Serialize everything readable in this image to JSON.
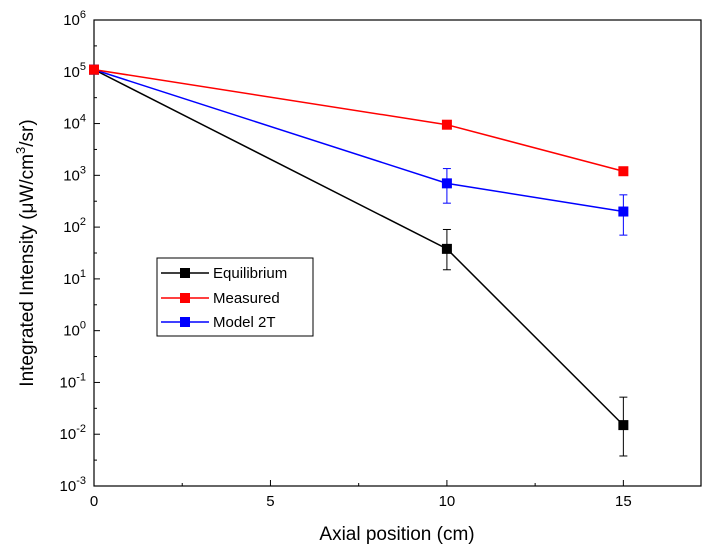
{
  "chart_data": {
    "type": "line",
    "xlabel": "Axial position (cm)",
    "ylabel_parts": [
      "Integrated Intensity (μW/cm",
      "3",
      "/sr)"
    ],
    "x_scale": "linear",
    "y_scale": "log",
    "xlim": [
      0,
      17.2
    ],
    "ylim": [
      0.001,
      1000000
    ],
    "x_ticks": [
      0,
      5,
      10,
      15
    ],
    "x_tick_labels": [
      "0",
      "5",
      "10",
      "15"
    ],
    "y_ticks": [
      0.001,
      0.01,
      0.1,
      1,
      10,
      100,
      1000,
      10000,
      100000,
      1000000
    ],
    "y_tick_labels": [
      {
        "base": "10",
        "exp": "-3"
      },
      {
        "base": "10",
        "exp": "-2"
      },
      {
        "base": "10",
        "exp": "-1"
      },
      {
        "base": "10",
        "exp": "0"
      },
      {
        "base": "10",
        "exp": "1"
      },
      {
        "base": "10",
        "exp": "2"
      },
      {
        "base": "10",
        "exp": "3"
      },
      {
        "base": "10",
        "exp": "4"
      },
      {
        "base": "10",
        "exp": "5"
      },
      {
        "base": "10",
        "exp": "6"
      }
    ],
    "grid": false,
    "legend_position": "center-left",
    "series": [
      {
        "name": "Equilibrium",
        "color": "#000000",
        "marker": "square",
        "x": [
          0,
          10,
          15
        ],
        "y": [
          110000,
          38,
          0.015
        ],
        "error_low": [
          null,
          15,
          0.0038
        ],
        "error_high": [
          null,
          90,
          0.052
        ]
      },
      {
        "name": "Measured",
        "color": "#ff0000",
        "marker": "square",
        "x": [
          0,
          10,
          15
        ],
        "y": [
          110000,
          9500,
          1200
        ],
        "error_low": [
          null,
          null,
          null
        ],
        "error_high": [
          null,
          null,
          null
        ]
      },
      {
        "name": "Model 2T",
        "color": "#0000ff",
        "marker": "square",
        "x": [
          0,
          10,
          15
        ],
        "y": [
          110000,
          700,
          200
        ],
        "error_low": [
          null,
          290,
          70
        ],
        "error_high": [
          null,
          1350,
          420
        ]
      }
    ]
  }
}
